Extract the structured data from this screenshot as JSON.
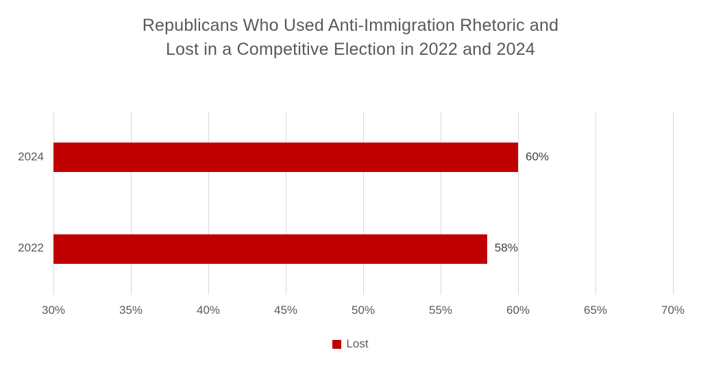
{
  "chart_data": {
    "type": "bar",
    "orientation": "horizontal",
    "title": "Republicans Who Used Anti-Immigration Rhetoric and Lost in a Competitive Election in 2022 and 2024",
    "title_lines": [
      "Republicans Who Used Anti-Immigration Rhetoric and",
      "Lost in a Competitive Election in 2022 and 2024"
    ],
    "categories": [
      "2024",
      "2022"
    ],
    "series": [
      {
        "name": "Lost",
        "values": [
          60,
          58
        ],
        "color": "#C00000"
      }
    ],
    "data_labels": [
      "60%",
      "58%"
    ],
    "xlim": [
      30,
      70
    ],
    "xticks": [
      30,
      35,
      40,
      45,
      50,
      55,
      60,
      65,
      70
    ],
    "xtick_labels": [
      "30%",
      "35%",
      "40%",
      "45%",
      "50%",
      "55%",
      "60%",
      "65%",
      "70%"
    ],
    "grid": true,
    "gridline_color": "#D9D9D9",
    "legend": {
      "position": "bottom",
      "entries": [
        {
          "label": "Lost",
          "color": "#C00000"
        }
      ]
    }
  }
}
